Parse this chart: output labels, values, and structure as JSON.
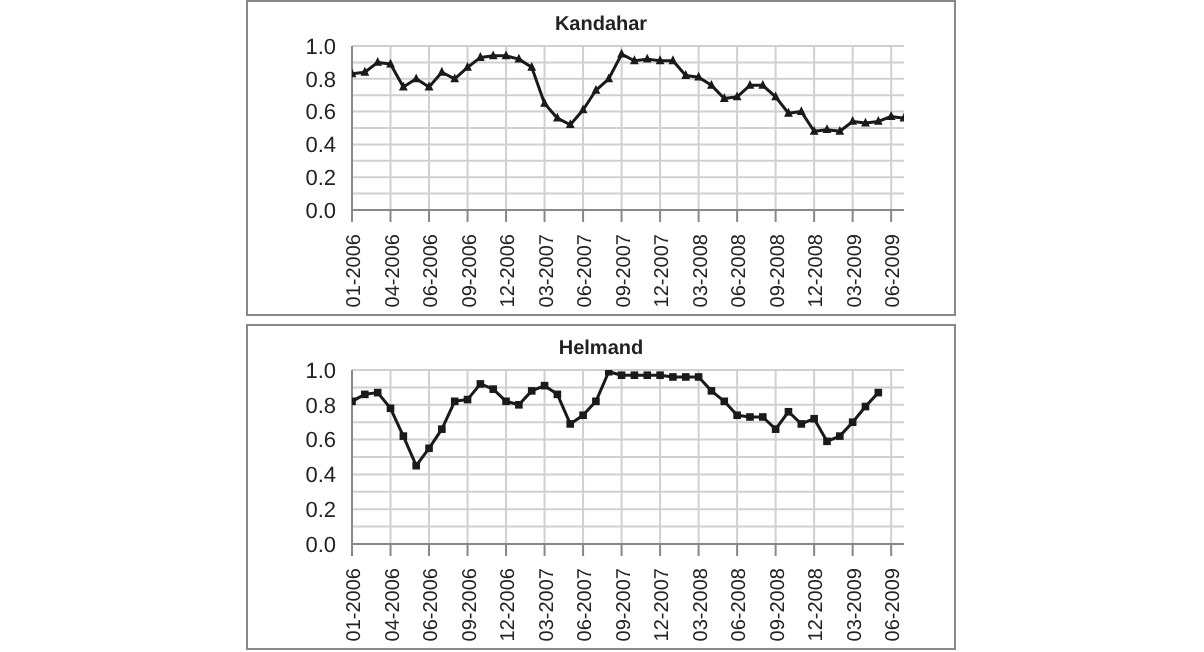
{
  "chart_data": [
    {
      "type": "line",
      "title": "Kandahar",
      "categories": [
        "01-2006",
        null,
        null,
        "04-2006",
        null,
        null,
        "06-2006",
        null,
        null,
        "09-2006",
        null,
        null,
        "12-2006",
        null,
        null,
        "03-2007",
        null,
        null,
        "06-2007",
        null,
        null,
        "09-2007",
        null,
        null,
        "12-2007",
        null,
        null,
        "03-2008",
        null,
        null,
        "06-2008",
        null,
        null,
        "09-2008",
        null,
        null,
        "12-2008",
        null,
        null,
        "03-2009",
        null,
        null,
        "06-2009",
        null
      ],
      "series": [
        {
          "color": "#1a1a1a",
          "marker": "triangle",
          "values": [
            0.83,
            0.84,
            0.9,
            0.89,
            0.75,
            0.8,
            0.75,
            0.84,
            0.8,
            0.87,
            0.93,
            0.94,
            0.94,
            0.92,
            0.87,
            0.65,
            0.56,
            0.52,
            0.61,
            0.73,
            0.8,
            0.95,
            0.91,
            0.92,
            0.91,
            0.91,
            0.82,
            0.81,
            0.76,
            0.68,
            0.69,
            0.76,
            0.76,
            0.69,
            0.59,
            0.6,
            0.48,
            0.49,
            0.48,
            0.54,
            0.53,
            0.54,
            0.57,
            0.56
          ]
        }
      ],
      "ylim": [
        0,
        1
      ],
      "yticks": [
        {
          "value": 0,
          "label": "0.0"
        },
        {
          "value": 0.1,
          "label": null
        },
        {
          "value": 0.2,
          "label": "0.2"
        },
        {
          "value": 0.3,
          "label": null
        },
        {
          "value": 0.4,
          "label": "0.4"
        },
        {
          "value": 0.5,
          "label": null
        },
        {
          "value": 0.6,
          "label": "0.6"
        },
        {
          "value": 0.7,
          "label": null
        },
        {
          "value": 0.8,
          "label": "0.8"
        },
        {
          "value": 0.9,
          "label": null
        },
        {
          "value": 1,
          "label": "1.0"
        }
      ],
      "grid": true,
      "line_style": "solid"
    },
    {
      "type": "line",
      "title": "Helmand",
      "categories": [
        "01-2006",
        null,
        null,
        "04-2006",
        null,
        null,
        "06-2006",
        null,
        null,
        "09-2006",
        null,
        null,
        "12-2006",
        null,
        null,
        "03-2007",
        null,
        null,
        "06-2007",
        null,
        null,
        "09-2007",
        null,
        null,
        "12-2007",
        null,
        null,
        "03-2008",
        null,
        null,
        "06-2008",
        null,
        null,
        "09-2008",
        null,
        null,
        "12-2008",
        null,
        null,
        "03-2009",
        null,
        null,
        "06-2009",
        null
      ],
      "series": [
        {
          "color": "#1a1a1a",
          "marker": "square",
          "values": [
            0.82,
            0.86,
            0.87,
            0.78,
            0.62,
            0.45,
            0.55,
            0.66,
            0.82,
            0.83,
            0.92,
            0.89,
            0.82,
            0.8,
            0.88,
            0.91,
            0.86,
            0.69,
            0.74,
            0.82,
            0.99,
            0.97,
            0.97,
            0.97,
            0.97,
            0.96,
            0.96,
            0.96,
            0.88,
            0.82,
            0.74,
            0.73,
            0.73,
            0.66,
            0.76,
            0.69,
            0.72,
            0.59,
            0.62,
            0.7,
            0.79,
            0.87,
            null,
            null
          ]
        }
      ],
      "ylim": [
        0,
        1
      ],
      "yticks": [
        {
          "value": 0,
          "label": "0.0"
        },
        {
          "value": 0.1,
          "label": null
        },
        {
          "value": 0.2,
          "label": "0.2"
        },
        {
          "value": 0.3,
          "label": null
        },
        {
          "value": 0.4,
          "label": "0.4"
        },
        {
          "value": 0.5,
          "label": null
        },
        {
          "value": 0.6,
          "label": "0.6"
        },
        {
          "value": 0.7,
          "label": null
        },
        {
          "value": 0.8,
          "label": "0.8"
        },
        {
          "value": 0.9,
          "label": null
        },
        {
          "value": 1,
          "label": "1.0"
        }
      ],
      "grid": true,
      "line_style": "solid"
    }
  ]
}
